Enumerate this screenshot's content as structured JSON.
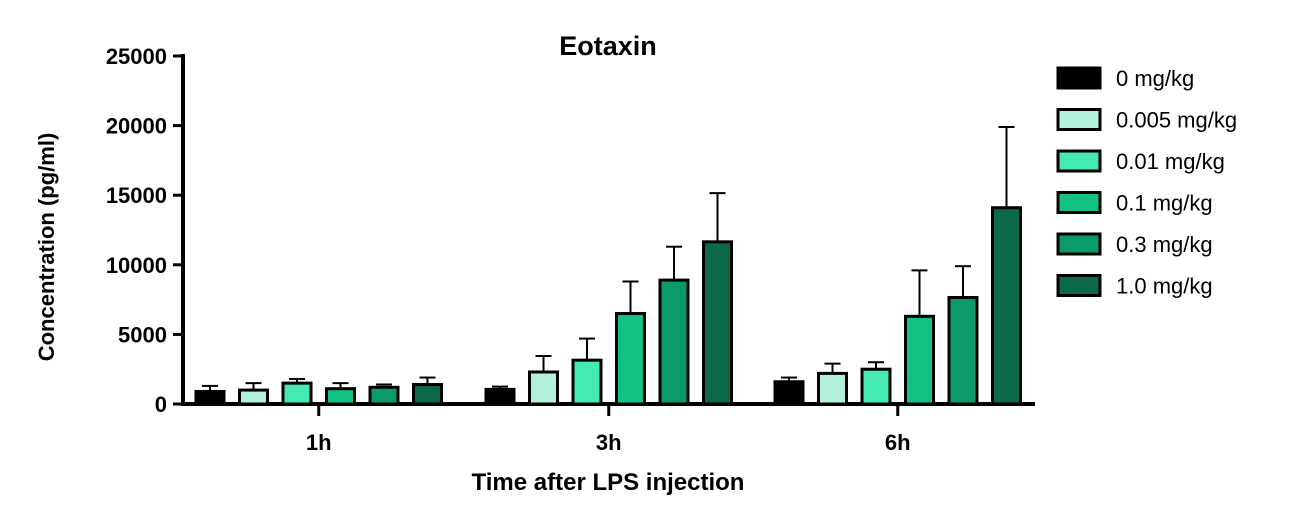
{
  "chart_data": {
    "type": "bar",
    "title": "Eotaxin",
    "xlabel": "Time after LPS injection",
    "ylabel": "Concentration (pg/ml)",
    "ylim": [
      0,
      25000
    ],
    "yticks": [
      "0",
      "5000",
      "10000",
      "15000",
      "20000",
      "25000"
    ],
    "categories": [
      "1h",
      "3h",
      "6h"
    ],
    "legend_position": "right",
    "series": [
      {
        "name": "0 mg/kg",
        "color": "#000000",
        "values": [
          900,
          1050,
          1600
        ],
        "errors": [
          400,
          200,
          300
        ]
      },
      {
        "name": "0.005 mg/kg",
        "color": "#b3f1dd",
        "values": [
          1000,
          2300,
          2200
        ],
        "errors": [
          500,
          1150,
          700
        ]
      },
      {
        "name": "0.01 mg/kg",
        "color": "#45eab2",
        "values": [
          1500,
          3150,
          2500
        ],
        "errors": [
          300,
          1550,
          500
        ]
      },
      {
        "name": "0.1 mg/kg",
        "color": "#12c283",
        "values": [
          1100,
          6500,
          6300
        ],
        "errors": [
          400,
          2300,
          3300
        ]
      },
      {
        "name": "0.3 mg/kg",
        "color": "#0b9a69",
        "values": [
          1200,
          8900,
          7650
        ],
        "errors": [
          200,
          2400,
          2250
        ]
      },
      {
        "name": "1.0 mg/kg",
        "color": "#0b6848",
        "values": [
          1400,
          11650,
          14100
        ],
        "errors": [
          500,
          3500,
          5800
        ]
      }
    ]
  }
}
